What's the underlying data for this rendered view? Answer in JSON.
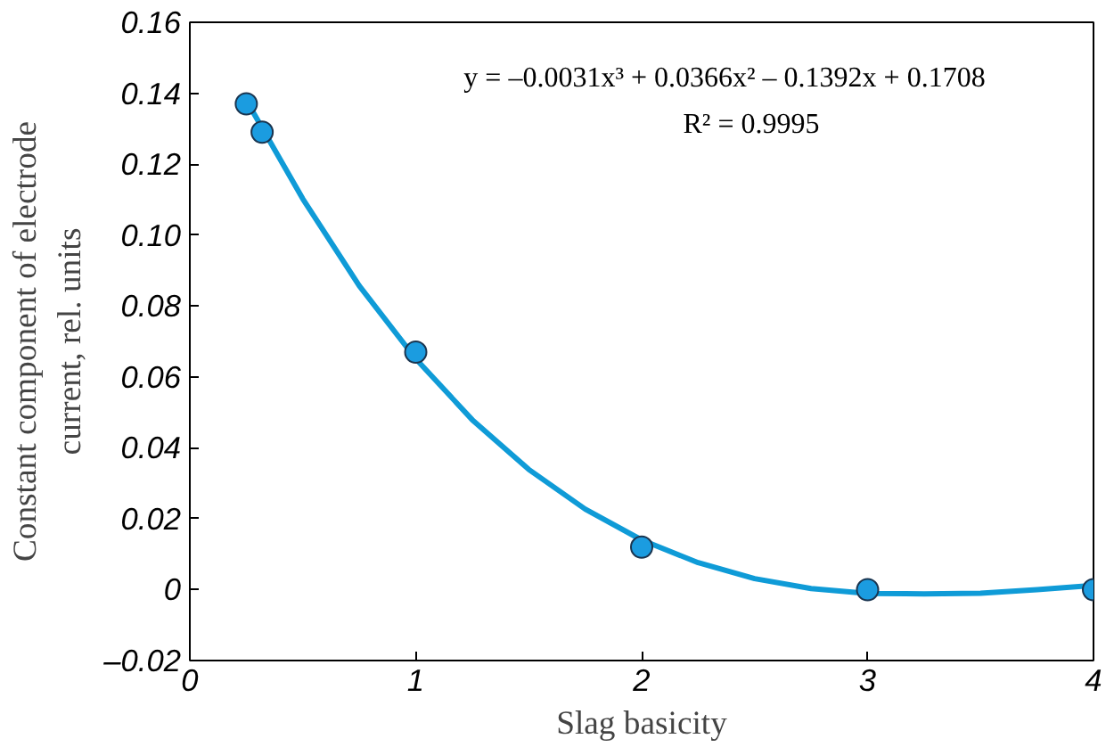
{
  "chart_data": {
    "type": "scatter",
    "xlabel": "Slag basicity",
    "ylabel": "Constant component of electrode\ncurrent, rel. units",
    "annotations": [
      "y = –0.0031x³ + 0.0366x² – 0.1392x + 0.1708",
      "R² = 0.9995"
    ],
    "xlim": [
      0,
      4
    ],
    "xticks": [
      0,
      1,
      2,
      3,
      4
    ],
    "ylim": [
      -0.02,
      0.16
    ],
    "yticks": [
      {
        "value": -0.02,
        "label": "–0.02"
      },
      0,
      {
        "value": 0.02,
        "label": "0.02"
      },
      {
        "value": 0.04,
        "label": "0.04"
      },
      {
        "value": 0.06,
        "label": "0.06"
      },
      {
        "value": 0.08,
        "label": "0.08"
      },
      {
        "value": 0.1,
        "label": "0.10"
      },
      {
        "value": 0.12,
        "label": "0.12"
      },
      {
        "value": 0.14,
        "label": "0.14"
      },
      {
        "value": 0.16,
        "label": "0.16"
      }
    ],
    "grid": false,
    "marker": "circle",
    "series": [
      {
        "color": "#1b9ce0",
        "x": [
          0.25,
          0.32,
          1,
          2,
          3,
          4
        ],
        "values": [
          0.137,
          0.129,
          0.067,
          0.012,
          0,
          0
        ]
      },
      {
        "type": "line",
        "color": "#0f9bd7",
        "line_style": "solid",
        "marker": "none",
        "x": [
          0.25,
          0.5,
          0.75,
          1,
          1.25,
          1.5,
          1.75,
          2,
          2.25,
          2.5,
          2.75,
          3,
          3.25,
          3.5,
          3.75,
          4
        ],
        "values": [
          0.138,
          0.1102,
          0.0857,
          0.0651,
          0.0479,
          0.0339,
          0.0227,
          0.014,
          0.0076,
          0.0031,
          0.0003,
          -0.0011,
          -0.0012,
          -0.001,
          0,
          0.0012
        ]
      }
    ]
  }
}
